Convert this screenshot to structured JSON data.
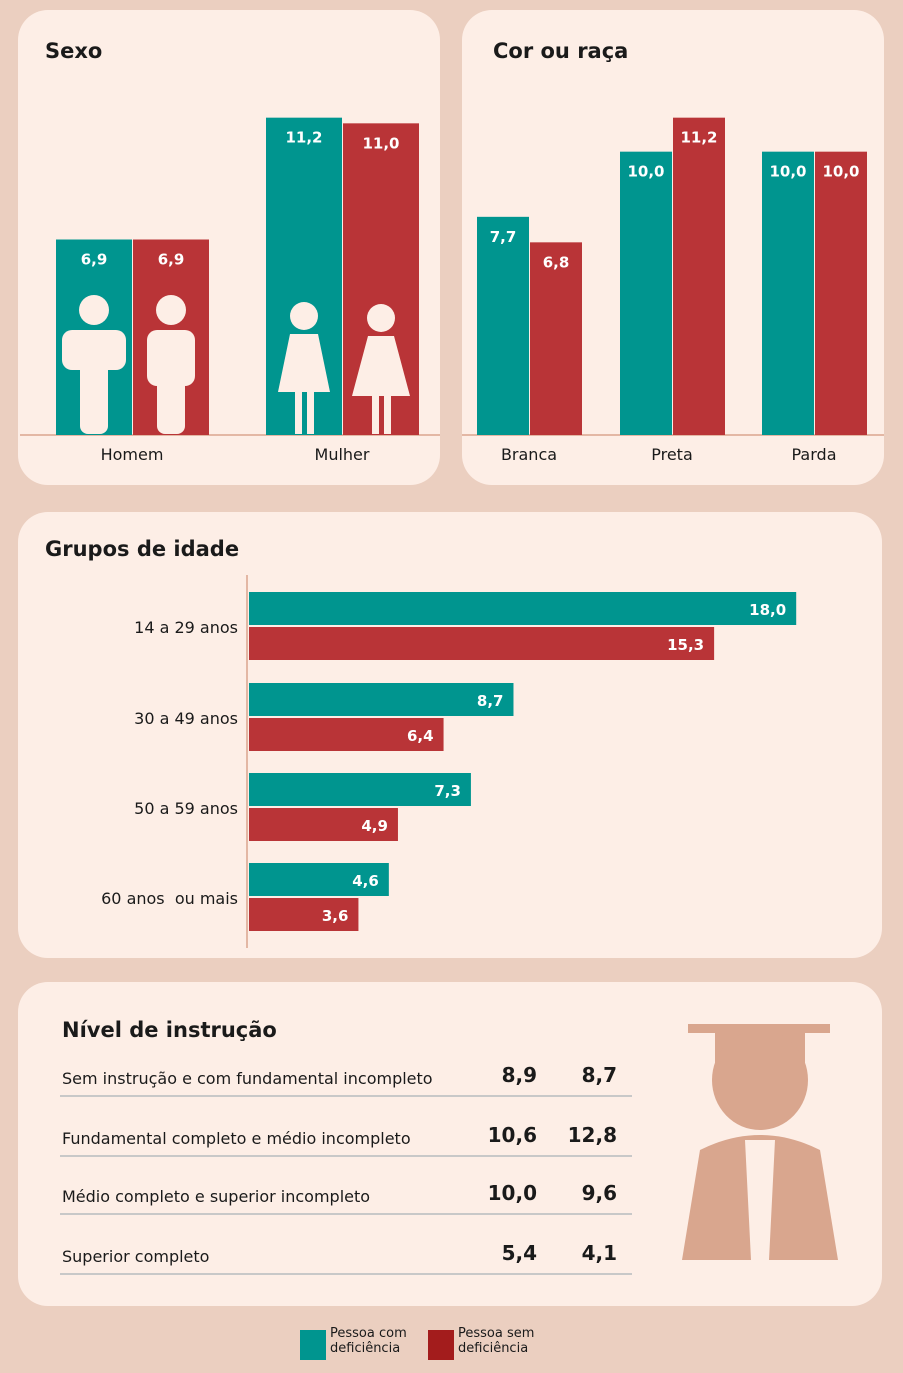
{
  "chart_data": [
    {
      "type": "bar",
      "title": "Sexo",
      "categories": [
        "Homem",
        "Mulher"
      ],
      "ylim": [
        0,
        12
      ],
      "series": [
        {
          "color": "#00958f",
          "values": [
            6.9,
            11.2
          ],
          "value_labels": [
            "6,9",
            "11,2"
          ]
        },
        {
          "color": "#b93437",
          "values": [
            6.9,
            11.0
          ],
          "value_labels": [
            "6,9",
            "11,0"
          ]
        }
      ]
    },
    {
      "type": "bar",
      "title": "Cor ou raça",
      "categories": [
        "Branca",
        "Preta",
        "Parda"
      ],
      "ylim": [
        0,
        12
      ],
      "series": [
        {
          "color": "#00958f",
          "values": [
            7.7,
            10.0,
            10.0
          ],
          "value_labels": [
            "7,7",
            "10,0",
            "10,0"
          ]
        },
        {
          "color": "#b93437",
          "values": [
            6.8,
            11.2,
            10.0
          ],
          "value_labels": [
            "6,8",
            "11,2",
            "10,0"
          ]
        }
      ]
    },
    {
      "type": "barh",
      "title": "Grupos de idade",
      "categories": [
        "14 a 29 anos",
        "30 a 49 anos",
        "50 a 59 anos",
        "60 anos  ou mais"
      ],
      "xlim": [
        0,
        20
      ],
      "series": [
        {
          "color": "#00958f",
          "values": [
            18.0,
            8.7,
            7.3,
            4.6
          ],
          "value_labels": [
            "18,0",
            "8,7",
            "7,3",
            "4,6"
          ]
        },
        {
          "color": "#b93437",
          "values": [
            15.3,
            6.4,
            4.9,
            3.6
          ],
          "value_labels": [
            "15,3",
            "6,4",
            "4,9",
            "3,6"
          ]
        }
      ]
    }
  ],
  "education": {
    "title": "Nível de instrução",
    "rows": [
      [
        "Sem instrução e com fundamental incompleto",
        "8,9",
        "8,7"
      ],
      [
        "Fundamental completo e médio incompleto",
        "10,6",
        "12,8"
      ],
      [
        "Médio completo e superior incompleto",
        "10,0",
        "9,6"
      ],
      [
        "Superior completo",
        "5,4",
        "4,1"
      ]
    ],
    "colors": [
      "#00958f",
      "#b93437"
    ]
  },
  "legend": [
    {
      "name": "Pessoa com deficiência",
      "color": "#00958f"
    },
    {
      "name": "Pessoa sem deficiência",
      "color": "#a31c1c"
    }
  ]
}
